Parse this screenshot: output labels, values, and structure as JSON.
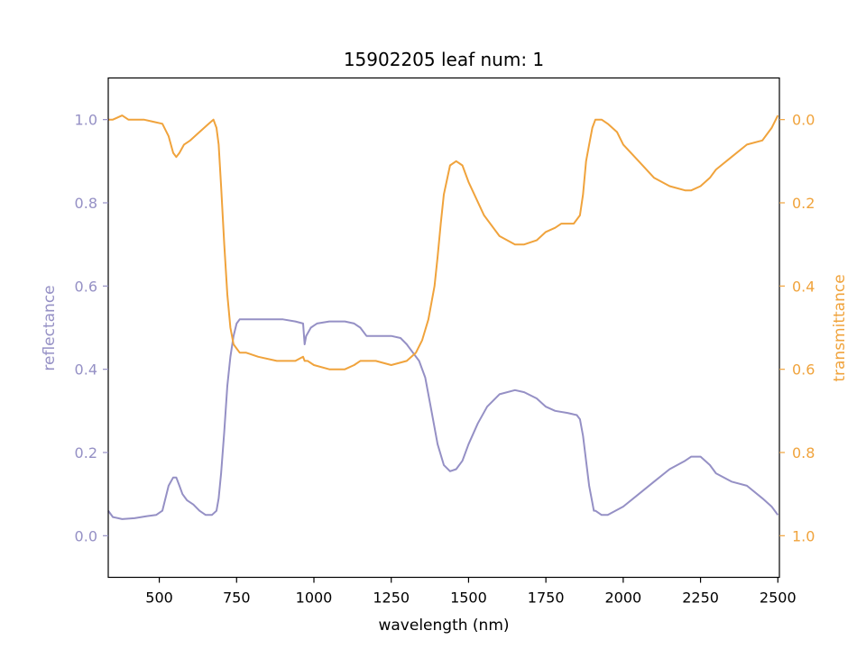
{
  "chart_data": {
    "type": "line",
    "title": "15902205 leaf num: 1",
    "xlabel": "wavelength (nm)",
    "ylabel_left": "reflectance",
    "ylabel_right": "transmittance",
    "xlim": [
      335,
      2505
    ],
    "ylim_left": [
      -0.1,
      1.1
    ],
    "ylim_right": [
      1.1,
      -0.1
    ],
    "right_axis_inverted": true,
    "grid": false,
    "legend": "none",
    "x_ticks": [
      500,
      750,
      1000,
      1250,
      1500,
      1750,
      2000,
      2250,
      2500
    ],
    "x_tick_labels": [
      "500",
      "750",
      "1000",
      "1250",
      "1500",
      "1750",
      "2000",
      "2250",
      "2500"
    ],
    "y_left_ticks": [
      0.0,
      0.2,
      0.4,
      0.6,
      0.8,
      1.0
    ],
    "y_left_tick_labels": [
      "0.0",
      "0.2",
      "0.4",
      "0.6",
      "0.8",
      "1.0"
    ],
    "y_right_ticks": [
      0.0,
      0.2,
      0.4,
      0.6,
      0.8,
      1.0
    ],
    "y_right_tick_labels": [
      "0.0",
      "0.2",
      "0.4",
      "0.6",
      "0.8",
      "1.0"
    ],
    "series": [
      {
        "axis": "left",
        "color": "#9590c5",
        "x": [
          335,
          350,
          380,
          420,
          460,
          490,
          510,
          530,
          545,
          555,
          565,
          575,
          590,
          610,
          630,
          650,
          670,
          685,
          692,
          700,
          710,
          720,
          730,
          740,
          750,
          760,
          800,
          850,
          900,
          940,
          965,
          970,
          975,
          990,
          1000,
          1010,
          1050,
          1100,
          1130,
          1150,
          1170,
          1200,
          1250,
          1280,
          1300,
          1320,
          1340,
          1360,
          1380,
          1400,
          1420,
          1440,
          1460,
          1480,
          1500,
          1530,
          1560,
          1600,
          1650,
          1680,
          1720,
          1750,
          1780,
          1820,
          1850,
          1860,
          1870,
          1880,
          1890,
          1900,
          1905,
          1910,
          1930,
          1950,
          2000,
          2050,
          2100,
          2150,
          2200,
          2220,
          2250,
          2280,
          2300,
          2350,
          2400,
          2450,
          2480,
          2500
        ],
        "y": [
          0.06,
          0.045,
          0.04,
          0.042,
          0.047,
          0.05,
          0.06,
          0.12,
          0.14,
          0.14,
          0.12,
          0.1,
          0.085,
          0.075,
          0.06,
          0.05,
          0.05,
          0.06,
          0.09,
          0.15,
          0.25,
          0.36,
          0.43,
          0.48,
          0.51,
          0.52,
          0.52,
          0.52,
          0.52,
          0.515,
          0.51,
          0.46,
          0.48,
          0.5,
          0.505,
          0.51,
          0.515,
          0.515,
          0.51,
          0.5,
          0.48,
          0.48,
          0.48,
          0.475,
          0.46,
          0.44,
          0.42,
          0.38,
          0.3,
          0.22,
          0.17,
          0.155,
          0.16,
          0.18,
          0.22,
          0.27,
          0.31,
          0.34,
          0.35,
          0.345,
          0.33,
          0.31,
          0.3,
          0.295,
          0.29,
          0.28,
          0.24,
          0.18,
          0.12,
          0.08,
          0.06,
          0.06,
          0.05,
          0.05,
          0.07,
          0.1,
          0.13,
          0.16,
          0.18,
          0.19,
          0.19,
          0.17,
          0.15,
          0.13,
          0.12,
          0.09,
          0.07,
          0.05
        ]
      },
      {
        "axis": "right",
        "color": "#f0a33c",
        "x": [
          335,
          350,
          380,
          400,
          420,
          450,
          480,
          510,
          530,
          545,
          555,
          565,
          580,
          600,
          630,
          660,
          675,
          685,
          692,
          700,
          710,
          720,
          730,
          740,
          750,
          760,
          780,
          820,
          880,
          940,
          965,
          970,
          980,
          1000,
          1050,
          1100,
          1130,
          1150,
          1180,
          1200,
          1250,
          1300,
          1330,
          1350,
          1370,
          1390,
          1400,
          1410,
          1420,
          1440,
          1460,
          1480,
          1500,
          1550,
          1600,
          1650,
          1680,
          1720,
          1750,
          1780,
          1800,
          1820,
          1840,
          1860,
          1870,
          1880,
          1890,
          1900,
          1910,
          1930,
          1950,
          1980,
          2000,
          2050,
          2100,
          2150,
          2200,
          2220,
          2250,
          2280,
          2300,
          2350,
          2400,
          2450,
          2480,
          2500
        ],
        "y": [
          0.0,
          0.0,
          -0.01,
          -0.0,
          0.0,
          0.0,
          0.005,
          0.01,
          0.04,
          0.08,
          0.09,
          0.08,
          0.06,
          0.05,
          0.03,
          0.01,
          0.0,
          0.02,
          0.06,
          0.16,
          0.3,
          0.42,
          0.5,
          0.54,
          0.55,
          0.56,
          0.56,
          0.57,
          0.58,
          0.58,
          0.57,
          0.58,
          0.58,
          0.59,
          0.6,
          0.6,
          0.59,
          0.58,
          0.58,
          0.58,
          0.59,
          0.58,
          0.56,
          0.53,
          0.48,
          0.4,
          0.33,
          0.25,
          0.18,
          0.11,
          0.1,
          0.11,
          0.15,
          0.23,
          0.28,
          0.3,
          0.3,
          0.29,
          0.27,
          0.26,
          0.25,
          0.25,
          0.25,
          0.23,
          0.18,
          0.1,
          0.06,
          0.02,
          0.0,
          0.0,
          0.01,
          0.03,
          0.06,
          0.1,
          0.14,
          0.16,
          0.17,
          0.17,
          0.16,
          0.14,
          0.12,
          0.09,
          0.06,
          0.05,
          0.02,
          -0.01
        ]
      }
    ]
  }
}
